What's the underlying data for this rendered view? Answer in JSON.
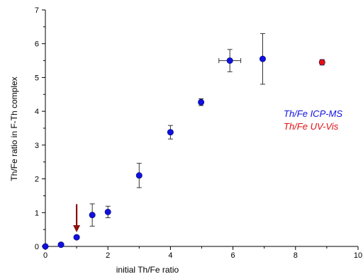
{
  "chart_data": {
    "type": "scatter",
    "title": "",
    "xlabel": "initial Th/Fe ratio",
    "ylabel": "Th/Fe ratio in F-Th complex",
    "xlim": [
      0,
      10
    ],
    "ylim": [
      0,
      7
    ],
    "x_ticks": [
      "0",
      "2",
      "4",
      "6",
      "8",
      "10"
    ],
    "y_ticks": [
      "0",
      "1",
      "2",
      "3",
      "4",
      "5",
      "6",
      "7"
    ],
    "grid": false,
    "legend_position": "right",
    "series": [
      {
        "name": "Th/Fe ICP-MS",
        "color": "#1010e0",
        "marker": "circle",
        "points": [
          {
            "x": 0,
            "y": 0.0,
            "yerr": 0
          },
          {
            "x": 0.5,
            "y": 0.05,
            "yerr": 0
          },
          {
            "x": 1.0,
            "y": 0.27,
            "yerr": 0
          },
          {
            "x": 1.5,
            "y": 0.93,
            "yerr": 0.33
          },
          {
            "x": 2.0,
            "y": 1.02,
            "yerr": 0.17
          },
          {
            "x": 3.0,
            "y": 2.1,
            "yerr": 0.36
          },
          {
            "x": 4.0,
            "y": 3.38,
            "yerr": 0.2
          },
          {
            "x": 4.98,
            "y": 4.27,
            "yerr": 0.1
          },
          {
            "x": 5.9,
            "y": 5.5,
            "yerr": 0.33,
            "xerr": 0.35
          },
          {
            "x": 6.95,
            "y": 5.55,
            "yerr": 0.75
          }
        ]
      },
      {
        "name": "Th/Fe UV-Vis",
        "color": "#e01010",
        "marker": "circle",
        "points": [
          {
            "x": 8.85,
            "y": 5.45,
            "yerr": 0.08
          }
        ]
      }
    ],
    "annotations": [
      {
        "type": "arrow",
        "x": 1.0,
        "y_from": 1.25,
        "y_to": 0.42,
        "color": "#8b1010"
      }
    ]
  }
}
